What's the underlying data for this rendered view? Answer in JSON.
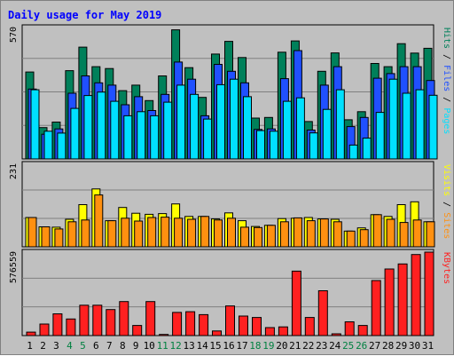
{
  "chart_data": {
    "type": "bar",
    "title": "Daily usage for May 2019",
    "days": [
      "1",
      "2",
      "3",
      "4",
      "5",
      "6",
      "7",
      "8",
      "9",
      "10",
      "11",
      "12",
      "13",
      "14",
      "15",
      "16",
      "17",
      "18",
      "19",
      "20",
      "21",
      "22",
      "23",
      "24",
      "25",
      "26",
      "27",
      "28",
      "29",
      "30",
      "31"
    ],
    "weekend_days": [
      "4",
      "5",
      "11",
      "12",
      "18",
      "19",
      "25",
      "26"
    ],
    "panels": [
      {
        "id": "top",
        "max_label": "570",
        "ymax": 570,
        "labels": [
          "Pages",
          "Files",
          "Hits"
        ],
        "series": [
          {
            "name": "Hits",
            "color": "#00805a",
            "values": [
              377,
              136,
              160,
              383,
              485,
              400,
              392,
              296,
              320,
              253,
              360,
              560,
              396,
              267,
              455,
              510,
              440,
              177,
              180,
              463,
              512,
              162,
              380,
              460,
              170,
              205,
              414,
              400,
              500,
              459,
              480
            ]
          },
          {
            "name": "Files",
            "color": "#2050ff",
            "values": [
              303,
              107,
              130,
              285,
              360,
              330,
              320,
              235,
              270,
              210,
              280,
              420,
              346,
              187,
              410,
              380,
              330,
              128,
              130,
              348,
              470,
              125,
              320,
              400,
              140,
              180,
              350,
              370,
              400,
              400,
              340
            ]
          },
          {
            "name": "Pages",
            "color": "#00e0ff",
            "values": [
              300,
              120,
              112,
              219,
              275,
              290,
              250,
              187,
              205,
              187,
              246,
              320,
              280,
              173,
              322,
              346,
              270,
              123,
              120,
              250,
              265,
              113,
              215,
              300,
              60,
              90,
              202,
              346,
              285,
              300,
              276
            ]
          }
        ]
      },
      {
        "id": "middle",
        "max_label": "231",
        "ymax": 231,
        "labels": [
          "Sites",
          "Visits"
        ],
        "series": [
          {
            "name": "Visits",
            "color": "#ffff00",
            "values": [
              82,
              56,
              55,
              77,
              118,
              162,
              73,
              110,
              94,
              91,
              93,
              120,
              85,
              85,
              78,
              95,
              73,
              57,
              60,
              79,
              80,
              82,
              78,
              77,
              44,
              53,
              90,
              85,
              118,
              126,
              70
            ]
          },
          {
            "name": "Sites",
            "color": "#ff9010",
            "values": [
              82,
              56,
              50,
              70,
              75,
              145,
              73,
              80,
              72,
              82,
              83,
              80,
              77,
              85,
              75,
              80,
              55,
              54,
              60,
              70,
              81,
              73,
              78,
              70,
              44,
              48,
              90,
              77,
              68,
              75,
              70
            ]
          }
        ]
      },
      {
        "id": "bottom",
        "max_label": "576559",
        "ymax": 576559,
        "labels": [
          "KBytes"
        ],
        "series": [
          {
            "name": "KBytes",
            "color": "#ff2020",
            "values": [
              24000,
              80000,
              150000,
              115000,
              210000,
              210000,
              180000,
              235000,
              70000,
              235000,
              8000,
              160000,
              165000,
              145000,
              32000,
              205000,
              135000,
              125000,
              55000,
              60000,
              445000,
              125000,
              310000,
              12000,
              95000,
              70000,
              380000,
              460000,
              495000,
              560000,
              576559
            ]
          }
        ]
      }
    ]
  }
}
